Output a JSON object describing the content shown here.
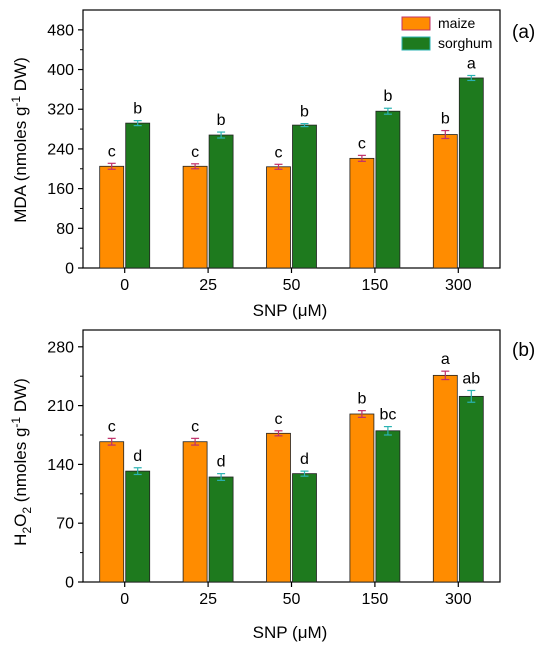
{
  "colors": {
    "maize": "#FF8C00",
    "sorghum": "#1E7A1E",
    "maize_error": "#C0306A",
    "sorghum_error": "#2BB3B3",
    "axis": "#000000"
  },
  "legend": {
    "placement": "top-right",
    "items": [
      {
        "label": "maize",
        "color": "#FF8C00"
      },
      {
        "label": "sorghum",
        "color": "#1E7A1E"
      }
    ]
  },
  "chart_data": [
    {
      "type": "bar",
      "panel_label": "(a)",
      "categories": [
        "0",
        "25",
        "50",
        "150",
        "300"
      ],
      "xlabel": "SNP (μM)",
      "ylabel_parts": {
        "main": "MDA (nmoles g",
        "sup": "-1",
        "tail": " DW)"
      },
      "ylim": [
        0,
        520
      ],
      "yticks": [
        0,
        80,
        160,
        240,
        320,
        400,
        480
      ],
      "ytick_labels": [
        "0",
        "80",
        "160",
        "240",
        "320",
        "400",
        "480"
      ],
      "series": [
        {
          "name": "maize",
          "values": [
            205,
            205,
            204,
            221,
            269
          ],
          "errors": [
            6,
            5,
            5,
            6,
            8
          ],
          "letters": [
            "c",
            "c",
            "c",
            "c",
            "b"
          ]
        },
        {
          "name": "sorghum",
          "values": [
            292,
            268,
            288,
            316,
            383
          ],
          "errors": [
            5,
            6,
            3,
            6,
            5
          ],
          "letters": [
            "b",
            "b",
            "b",
            "b",
            "a"
          ]
        }
      ]
    },
    {
      "type": "bar",
      "panel_label": "(b)",
      "categories": [
        "0",
        "25",
        "50",
        "150",
        "300"
      ],
      "xlabel": "SNP (μM)",
      "ylabel_parts": {
        "pre": "H",
        "sub1": "2",
        "mid": "O",
        "sub2": "2",
        "main": " (nmoles g",
        "sup": "-1",
        "tail": " DW)"
      },
      "ylim": [
        0,
        300
      ],
      "yticks": [
        0,
        70,
        140,
        210,
        280
      ],
      "ytick_labels": [
        "0",
        "70",
        "140",
        "210",
        "280"
      ],
      "series": [
        {
          "name": "maize",
          "values": [
            167,
            167,
            177,
            200,
            246
          ],
          "errors": [
            4,
            4,
            3,
            4,
            5
          ],
          "letters": [
            "c",
            "c",
            "c",
            "b",
            "a"
          ]
        },
        {
          "name": "sorghum",
          "values": [
            132,
            125,
            129,
            180,
            221
          ],
          "errors": [
            4,
            4,
            3,
            5,
            7
          ],
          "letters": [
            "d",
            "d",
            "d",
            "bc",
            "ab"
          ]
        }
      ]
    }
  ]
}
